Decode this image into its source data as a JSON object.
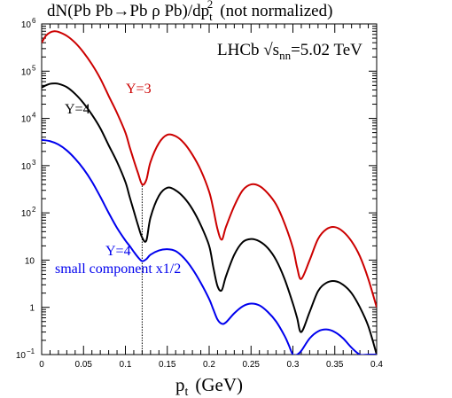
{
  "chart_data": {
    "type": "line",
    "title": "dN(Pb Pb→Pb ρ Pb)/dp",
    "title_sup": "2",
    "title_sub": "t",
    "title_suffix": "(not normalized)",
    "annotation_prefix": "LHCb  √s",
    "annotation_sub": "nn",
    "annotation_suffix": "=5.02 TeV",
    "xlabel_main": "p",
    "xlabel_sub": "t",
    "xlabel_unit": "(GeV)",
    "xlim": [
      0,
      0.4
    ],
    "ylim": [
      0.1,
      1000000
    ],
    "yscale": "log",
    "x_ticks": [
      "0",
      "0.05",
      "0.1",
      "0.15",
      "0.2",
      "0.25",
      "0.3",
      "0.35",
      "0.4"
    ],
    "y_tick_labels": [
      {
        "base": "10",
        "exp": "−1",
        "value": 0.1
      },
      {
        "base": "1",
        "exp": "",
        "value": 1
      },
      {
        "base": "10",
        "exp": "",
        "value": 10
      },
      {
        "base": "10",
        "exp": "2",
        "value": 100
      },
      {
        "base": "10",
        "exp": "3",
        "value": 1000
      },
      {
        "base": "10",
        "exp": "4",
        "value": 10000
      },
      {
        "base": "10",
        "exp": "5",
        "value": 100000
      },
      {
        "base": "10",
        "exp": "6",
        "value": 1000000
      }
    ],
    "vline_x": 0.12,
    "series": [
      {
        "label": "Y=3",
        "color": "#cc0000",
        "x": [
          0,
          0.005,
          0.01,
          0.015,
          0.02,
          0.03,
          0.04,
          0.05,
          0.06,
          0.07,
          0.08,
          0.09,
          0.1,
          0.105,
          0.11,
          0.115,
          0.12,
          0.125,
          0.13,
          0.14,
          0.15,
          0.16,
          0.17,
          0.18,
          0.19,
          0.2,
          0.205,
          0.21,
          0.215,
          0.22,
          0.23,
          0.24,
          0.25,
          0.26,
          0.27,
          0.28,
          0.29,
          0.3,
          0.305,
          0.31,
          0.32,
          0.33,
          0.34,
          0.35,
          0.36,
          0.37,
          0.38,
          0.39,
          0.4
        ],
        "y": [
          400000,
          560000,
          660000,
          700000,
          680000,
          560000,
          400000,
          250000,
          140000,
          70000,
          30000,
          13000,
          5000,
          2500,
          1300,
          700,
          400,
          500,
          1200,
          3000,
          4500,
          4200,
          3000,
          1700,
          800,
          280,
          120,
          45,
          27,
          50,
          140,
          300,
          400,
          370,
          260,
          150,
          60,
          18,
          7,
          4,
          10,
          28,
          45,
          50,
          40,
          25,
          12,
          4,
          1
        ]
      },
      {
        "label": "Y=4",
        "color": "#000000",
        "x": [
          0,
          0.005,
          0.01,
          0.015,
          0.02,
          0.03,
          0.04,
          0.05,
          0.06,
          0.07,
          0.08,
          0.09,
          0.1,
          0.105,
          0.11,
          0.115,
          0.12,
          0.125,
          0.13,
          0.14,
          0.15,
          0.16,
          0.17,
          0.18,
          0.19,
          0.2,
          0.205,
          0.21,
          0.215,
          0.22,
          0.23,
          0.24,
          0.25,
          0.26,
          0.27,
          0.28,
          0.29,
          0.3,
          0.305,
          0.31,
          0.32,
          0.33,
          0.34,
          0.35,
          0.36,
          0.37,
          0.38,
          0.39,
          0.4
        ],
        "y": [
          45000,
          50000,
          54000,
          55000,
          54000,
          46000,
          33000,
          21000,
          12000,
          6200,
          2700,
          1200,
          450,
          220,
          110,
          55,
          30,
          26,
          80,
          230,
          340,
          300,
          210,
          120,
          55,
          20,
          7,
          2.8,
          2.3,
          4.5,
          13,
          24,
          28,
          25,
          18,
          10,
          4,
          1.2,
          0.6,
          0.3,
          0.8,
          2.2,
          3.3,
          3.6,
          3.0,
          2.0,
          1.0,
          0.4,
          0.1
        ]
      },
      {
        "label": "Y=4 small component x1/2",
        "color": "#0000ee",
        "x": [
          0,
          0.01,
          0.02,
          0.03,
          0.04,
          0.05,
          0.06,
          0.07,
          0.08,
          0.09,
          0.1,
          0.105,
          0.11,
          0.115,
          0.12,
          0.125,
          0.13,
          0.14,
          0.15,
          0.16,
          0.17,
          0.18,
          0.19,
          0.2,
          0.205,
          0.21,
          0.215,
          0.22,
          0.23,
          0.24,
          0.25,
          0.26,
          0.27,
          0.28,
          0.29,
          0.295,
          0.3,
          0.305,
          0.31,
          0.32,
          0.33,
          0.34,
          0.35,
          0.36,
          0.37,
          0.38,
          0.39,
          0.4
        ],
        "y": [
          3500,
          3300,
          2800,
          2100,
          1400,
          850,
          460,
          220,
          100,
          48,
          26,
          20,
          15,
          11.5,
          9.5,
          10.5,
          13,
          16,
          17,
          15.5,
          11,
          6.5,
          3.3,
          1.5,
          0.9,
          0.55,
          0.45,
          0.48,
          0.75,
          1.05,
          1.2,
          1.1,
          0.8,
          0.5,
          0.25,
          0.16,
          0.1,
          0.1,
          0.12,
          0.22,
          0.31,
          0.34,
          0.3,
          0.22,
          0.14,
          0.1,
          0.1,
          0.1
        ]
      }
    ],
    "labels": {
      "y3": "Y=3",
      "y4": "Y=4",
      "blue_line1": "Y=4",
      "blue_line2": "small component x1/2"
    }
  }
}
